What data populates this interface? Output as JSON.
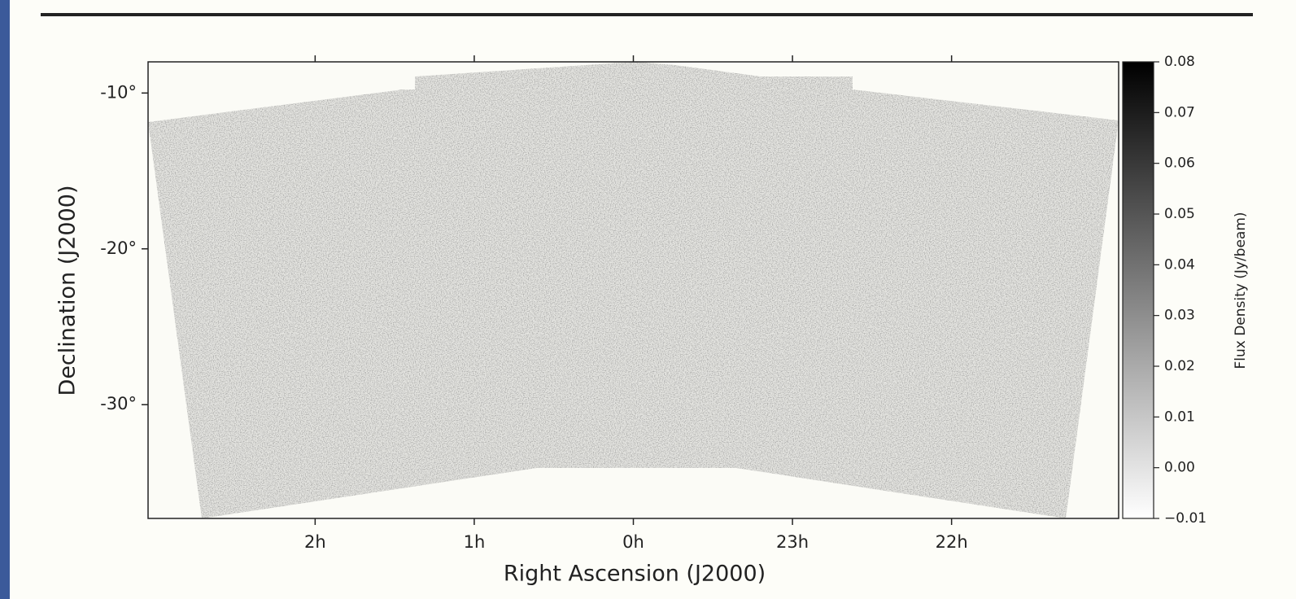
{
  "chart_data": {
    "type": "image",
    "xlabel": "Right Ascension (J2000)",
    "ylabel": "Declination (J2000)",
    "xlim": [
      3.05,
      -3.05
    ],
    "xticks": [
      {
        "value": 2,
        "label": "2h"
      },
      {
        "value": 1,
        "label": "1h"
      },
      {
        "value": 0,
        "label": "0h"
      },
      {
        "value": -1,
        "label": "23h"
      },
      {
        "value": -2,
        "label": "22h"
      }
    ],
    "ylim": [
      -37.3,
      -8
    ],
    "yticks": [
      {
        "value": -10,
        "label": "-10°"
      },
      {
        "value": -20,
        "label": "-20°"
      },
      {
        "value": -30,
        "label": "-30°"
      }
    ],
    "colorbar": {
      "label": "Flux Density (Jy/beam)",
      "lim": [
        -0.01,
        0.08
      ],
      "ticks": [
        {
          "value": 0.08,
          "label": "0.08"
        },
        {
          "value": 0.07,
          "label": "0.07"
        },
        {
          "value": 0.06,
          "label": "0.06"
        },
        {
          "value": 0.05,
          "label": "0.05"
        },
        {
          "value": 0.04,
          "label": "0.04"
        },
        {
          "value": 0.03,
          "label": "0.03"
        },
        {
          "value": 0.02,
          "label": "0.02"
        },
        {
          "value": 0.01,
          "label": "0.01"
        },
        {
          "value": 0.0,
          "label": "0.00"
        },
        {
          "value": -0.01,
          "label": "−0.01"
        }
      ],
      "colors": [
        "#ffffff",
        "#000000"
      ]
    }
  }
}
